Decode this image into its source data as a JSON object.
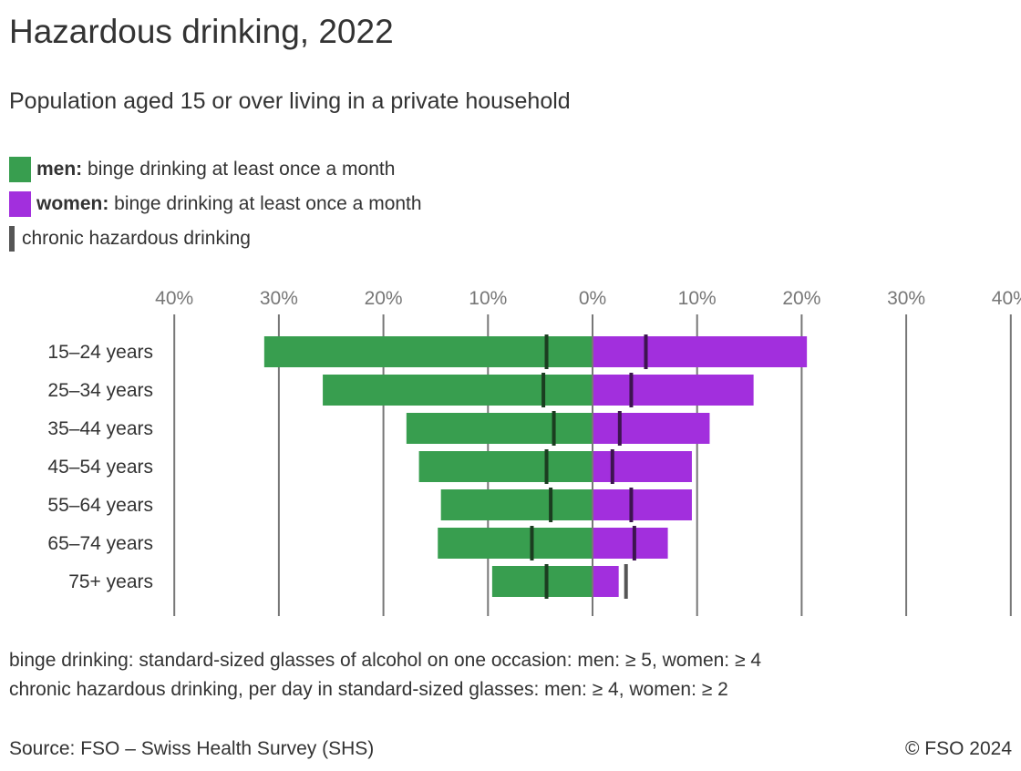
{
  "title": "Hazardous drinking, 2022",
  "subtitle": "Population aged 15 or over living in a private household",
  "legend": [
    {
      "bold": "men:",
      "text": " binge drinking at least once a month",
      "color": "#389e4f"
    },
    {
      "bold": "women:",
      "text": " binge drinking at least once a month",
      "color": "#a22fdd"
    },
    {
      "bold": "",
      "text": "chronic hazardous drinking",
      "color": "#555555"
    }
  ],
  "notes": [
    "binge drinking: standard-sized glasses of alcohol on one occasion: men: ≥ 5, women: ≥ 4",
    "chronic hazardous drinking, per day in standard-sized glasses: men: ≥ 4, women: ≥ 2"
  ],
  "source": "Source: FSO – Swiss Health Survey (SHS)",
  "copyright": "© FSO 2024",
  "chart_data": {
    "type": "bar",
    "orientation": "horizontal-diverging",
    "categories": [
      "15–24 years",
      "25–34 years",
      "35–44 years",
      "45–54 years",
      "55–64 years",
      "65–74 years",
      "75+ years"
    ],
    "series": [
      {
        "name": "men: binge drinking at least once a month",
        "side": "left",
        "color": "#389e4f",
        "values": [
          31.4,
          25.8,
          17.8,
          16.6,
          14.5,
          14.8,
          9.6
        ]
      },
      {
        "name": "women: binge drinking at least once a month",
        "side": "right",
        "color": "#a22fdd",
        "values": [
          20.5,
          15.4,
          11.2,
          9.5,
          9.5,
          7.2,
          2.5
        ]
      },
      {
        "name": "chronic hazardous drinking (men)",
        "side": "left",
        "marker": true,
        "values": [
          4.4,
          4.7,
          3.7,
          4.4,
          4.0,
          5.8,
          4.4
        ]
      },
      {
        "name": "chronic hazardous drinking (women)",
        "side": "right",
        "marker": true,
        "values": [
          5.1,
          3.7,
          2.6,
          1.9,
          3.7,
          4.0,
          3.2
        ]
      }
    ],
    "ticks": [
      -40,
      -30,
      -20,
      -10,
      0,
      10,
      20,
      30,
      40
    ],
    "tick_labels": [
      "40%",
      "30%",
      "20%",
      "10%",
      "0%",
      "10%",
      "20%",
      "30%",
      "40%"
    ],
    "xlim": [
      -40,
      40
    ],
    "grid": true,
    "legend_position": "top-left"
  }
}
